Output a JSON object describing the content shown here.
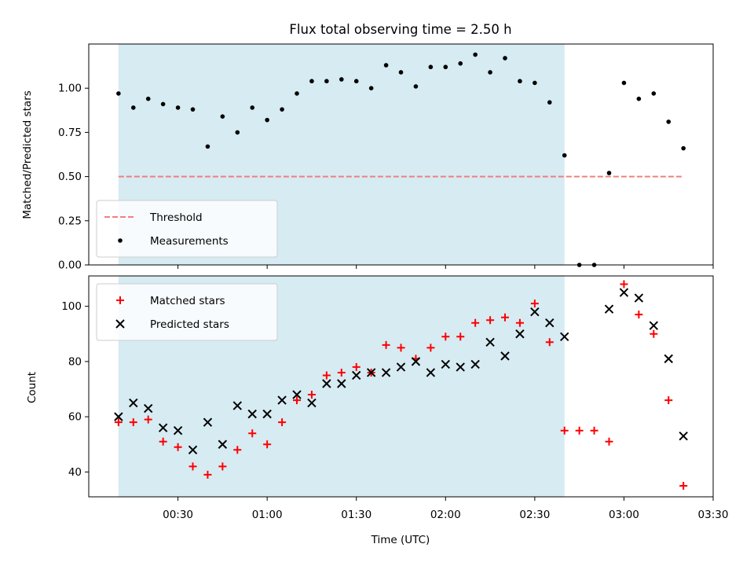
{
  "chart_data": {
    "title": "Flux total observing time = 2.50 h",
    "xlabel": "Time (UTC)",
    "x_unit": "minutes after 00:00 UTC",
    "xlim": [
      "00:00",
      "03:30"
    ],
    "xticks": [
      "00:30",
      "01:00",
      "01:30",
      "02:00",
      "02:30",
      "03:00",
      "03:30"
    ],
    "observing_window": [
      "00:10",
      "02:40"
    ],
    "colors": {
      "window": "#add8e6",
      "threshold": "#f08080",
      "matched": "#ff0000",
      "predicted": "#000000",
      "measurement": "#000000"
    },
    "panels": [
      {
        "type": "scatter",
        "ylabel": "Matched/Predicted stars",
        "ylim": [
          0,
          1.25
        ],
        "yticks": [
          "0.00",
          "0.25",
          "0.50",
          "0.75",
          "1.00"
        ],
        "legend": "lower-left",
        "threshold": {
          "name": "Threshold",
          "value": 0.5,
          "x_range": [
            "00:10",
            "03:20"
          ]
        },
        "series": [
          {
            "name": "Measurements",
            "x": [
              "00:10",
              "00:15",
              "00:20",
              "00:25",
              "00:30",
              "00:35",
              "00:40",
              "00:45",
              "00:50",
              "00:55",
              "01:00",
              "01:05",
              "01:10",
              "01:15",
              "01:20",
              "01:25",
              "01:30",
              "01:35",
              "01:40",
              "01:45",
              "01:50",
              "01:55",
              "02:00",
              "02:05",
              "02:10",
              "02:15",
              "02:20",
              "02:25",
              "02:30",
              "02:35",
              "02:40",
              "02:45",
              "02:50",
              "02:55",
              "03:00",
              "03:05",
              "03:10",
              "03:15",
              "03:20"
            ],
            "y": [
              0.97,
              0.89,
              0.94,
              0.91,
              0.89,
              0.88,
              0.67,
              0.84,
              0.75,
              0.89,
              0.82,
              0.88,
              0.97,
              1.04,
              1.04,
              1.05,
              1.04,
              1.0,
              1.13,
              1.09,
              1.01,
              1.12,
              1.12,
              1.14,
              1.19,
              1.09,
              1.17,
              1.04,
              1.03,
              0.92,
              0.62,
              0.0,
              0.0,
              0.52,
              1.03,
              0.94,
              0.97,
              0.81,
              0.66
            ]
          }
        ]
      },
      {
        "type": "scatter",
        "ylabel": "Count",
        "ylim": [
          31,
          111
        ],
        "yticks": [
          "40",
          "60",
          "80",
          "100"
        ],
        "legend": "upper-left",
        "series": [
          {
            "name": "Matched stars",
            "marker": "+",
            "x": [
              "00:10",
              "00:15",
              "00:20",
              "00:25",
              "00:30",
              "00:35",
              "00:40",
              "00:45",
              "00:50",
              "00:55",
              "01:00",
              "01:05",
              "01:10",
              "01:15",
              "01:20",
              "01:25",
              "01:30",
              "01:35",
              "01:40",
              "01:45",
              "01:50",
              "01:55",
              "02:00",
              "02:05",
              "02:10",
              "02:15",
              "02:20",
              "02:25",
              "02:30",
              "02:35",
              "02:40",
              "02:45",
              "02:50",
              "02:55",
              "03:00",
              "03:05",
              "03:10",
              "03:15",
              "03:20"
            ],
            "y": [
              58,
              58,
              59,
              51,
              49,
              42,
              39,
              42,
              48,
              54,
              50,
              58,
              66,
              68,
              75,
              76,
              78,
              76,
              86,
              85,
              81,
              85,
              89,
              89,
              94,
              95,
              96,
              94,
              101,
              87,
              55,
              55,
              55,
              51,
              108,
              97,
              90,
              66,
              35
            ]
          },
          {
            "name": "Predicted stars",
            "marker": "x",
            "x": [
              "00:10",
              "00:15",
              "00:20",
              "00:25",
              "00:30",
              "00:35",
              "00:40",
              "00:45",
              "00:50",
              "00:55",
              "01:00",
              "01:05",
              "01:10",
              "01:15",
              "01:20",
              "01:25",
              "01:30",
              "01:35",
              "01:40",
              "01:45",
              "01:50",
              "01:55",
              "02:00",
              "02:05",
              "02:10",
              "02:15",
              "02:20",
              "02:25",
              "02:30",
              "02:35",
              "02:40",
              "02:55",
              "03:00",
              "03:05",
              "03:10",
              "03:15",
              "03:20"
            ],
            "y": [
              60,
              65,
              63,
              56,
              55,
              48,
              58,
              50,
              64,
              61,
              61,
              66,
              68,
              65,
              72,
              72,
              75,
              76,
              76,
              78,
              80,
              76,
              79,
              78,
              79,
              87,
              82,
              90,
              98,
              94,
              89,
              99,
              105,
              103,
              93,
              81,
              53
            ]
          }
        ]
      }
    ]
  }
}
